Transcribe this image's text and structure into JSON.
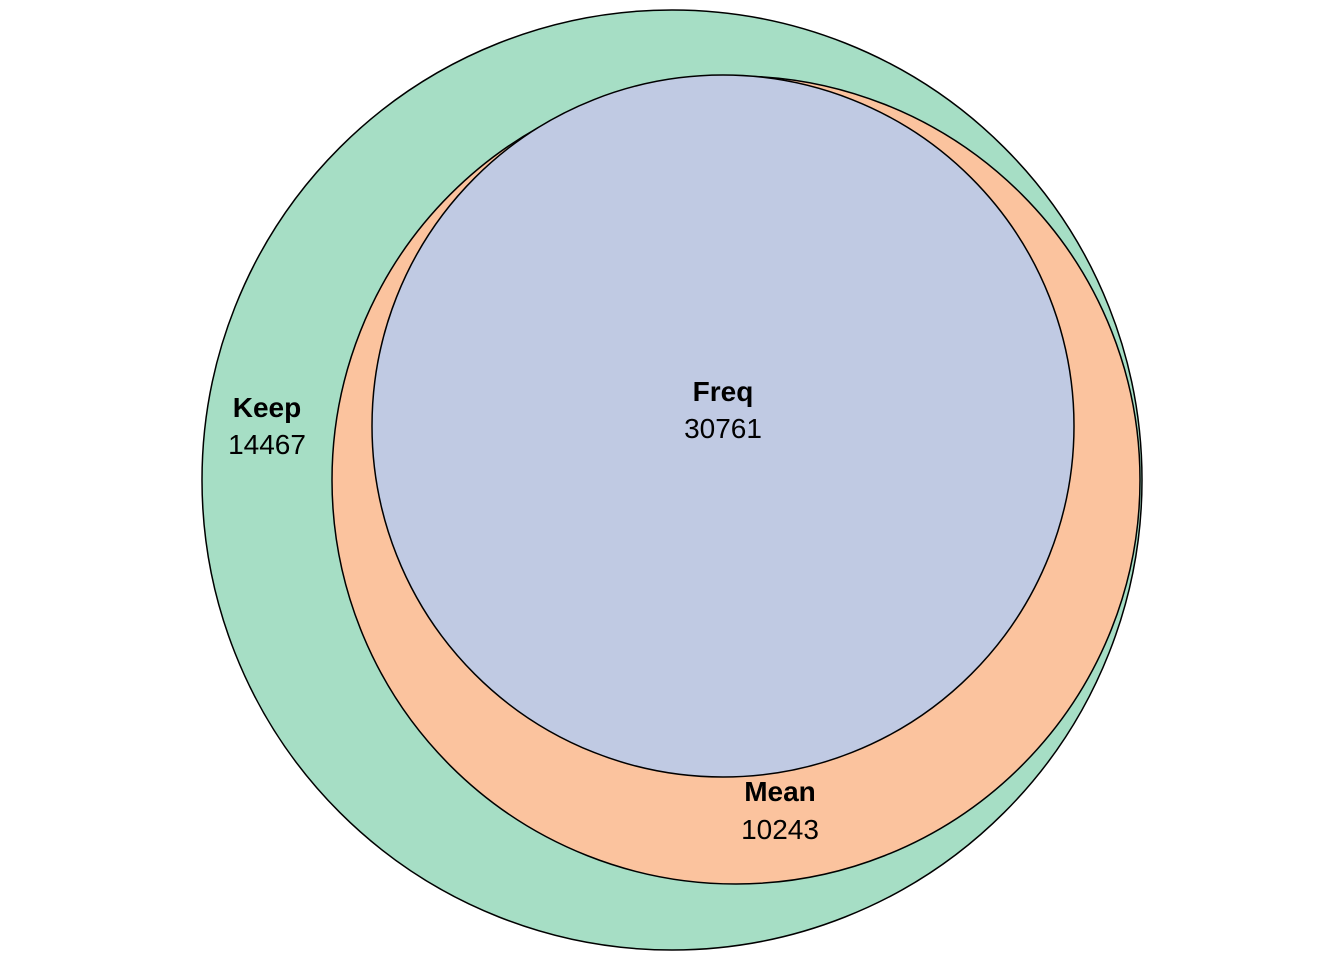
{
  "chart_data": {
    "type": "venn",
    "sets": [
      {
        "key": "keep",
        "name": "Keep",
        "count": "14467",
        "color": "#a6dec5"
      },
      {
        "key": "mean",
        "name": "Mean",
        "count": "10243",
        "color": "#fbc39e"
      },
      {
        "key": "freq",
        "name": "Freq",
        "count": "30761",
        "color": "#c0cae3"
      }
    ],
    "outline_color": "#000000"
  }
}
